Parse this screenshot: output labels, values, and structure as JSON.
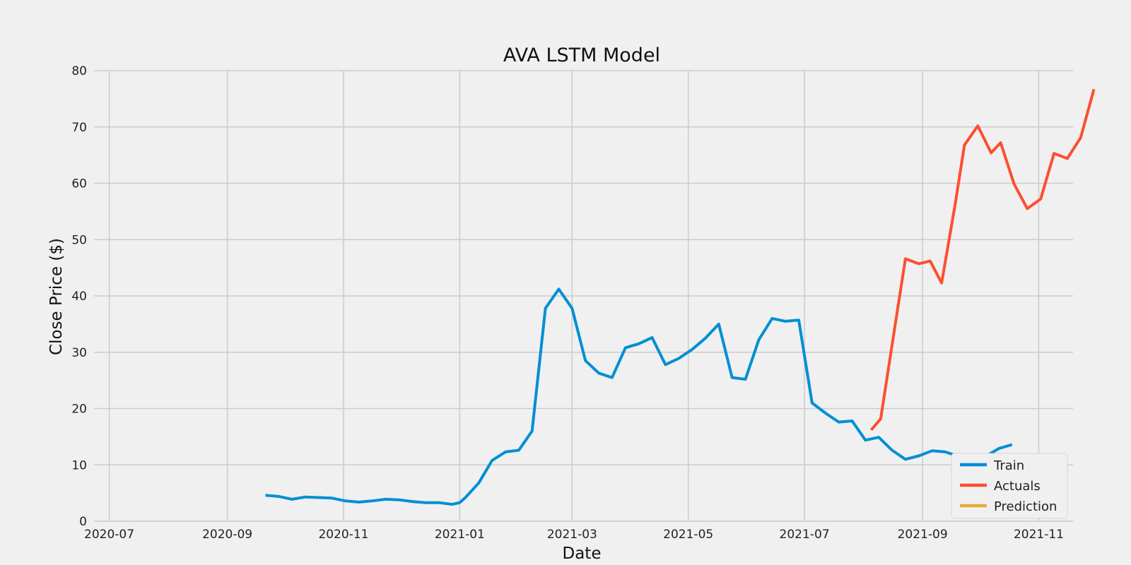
{
  "chart_data": {
    "type": "line",
    "title": "AVA LSTM Model",
    "xlabel": "Date",
    "ylabel": "Close Price ($)",
    "x_type": "date",
    "xlim": [
      "2020-06-23",
      "2021-11-19"
    ],
    "ylim": [
      0,
      80
    ],
    "x_ticks": [
      "2020-07-01",
      "2020-09-01",
      "2020-11-01",
      "2021-01-01",
      "2021-03-01",
      "2021-05-01",
      "2021-07-01",
      "2021-09-01",
      "2021-11-01"
    ],
    "x_tick_labels": [
      "2020-07",
      "2020-09",
      "2020-11",
      "2021-01",
      "2021-03",
      "2021-05",
      "2021-07",
      "2021-09",
      "2021-11"
    ],
    "y_ticks": [
      0,
      10,
      20,
      30,
      40,
      50,
      60,
      70,
      80
    ],
    "grid": true,
    "legend_position": "lower-right",
    "series": [
      {
        "name": "Train",
        "color": "#008fd5",
        "points": [
          [
            "2020-09-21",
            4.6
          ],
          [
            "2020-09-28",
            4.4
          ],
          [
            "2020-10-05",
            3.9
          ],
          [
            "2020-10-12",
            4.3
          ],
          [
            "2020-10-19",
            4.2
          ],
          [
            "2020-10-26",
            4.1
          ],
          [
            "2020-11-02",
            3.6
          ],
          [
            "2020-11-09",
            3.4
          ],
          [
            "2020-11-16",
            3.6
          ],
          [
            "2020-11-23",
            3.9
          ],
          [
            "2020-11-30",
            3.8
          ],
          [
            "2020-12-07",
            3.5
          ],
          [
            "2020-12-14",
            3.3
          ],
          [
            "2020-12-21",
            3.3
          ],
          [
            "2020-12-28",
            3.0
          ],
          [
            "2021-01-01",
            3.3
          ],
          [
            "2021-01-04",
            4.2
          ],
          [
            "2021-01-11",
            6.8
          ],
          [
            "2021-01-18",
            10.8
          ],
          [
            "2021-01-25",
            12.3
          ],
          [
            "2021-02-01",
            12.6
          ],
          [
            "2021-02-08",
            16.0
          ],
          [
            "2021-02-15",
            37.8
          ],
          [
            "2021-02-22",
            41.2
          ],
          [
            "2021-03-01",
            37.8
          ],
          [
            "2021-03-08",
            28.5
          ],
          [
            "2021-03-15",
            26.3
          ],
          [
            "2021-03-22",
            25.5
          ],
          [
            "2021-03-29",
            30.8
          ],
          [
            "2021-04-05",
            31.5
          ],
          [
            "2021-04-12",
            32.6
          ],
          [
            "2021-04-19",
            27.8
          ],
          [
            "2021-04-26",
            28.9
          ],
          [
            "2021-05-03",
            30.5
          ],
          [
            "2021-05-10",
            32.5
          ],
          [
            "2021-05-17",
            35.0
          ],
          [
            "2021-05-24",
            25.5
          ],
          [
            "2021-05-31",
            25.2
          ],
          [
            "2021-06-07",
            32.2
          ],
          [
            "2021-06-14",
            36.0
          ],
          [
            "2021-06-21",
            35.5
          ],
          [
            "2021-06-28",
            35.7
          ],
          [
            "2021-07-05",
            21.0
          ],
          [
            "2021-07-12",
            19.2
          ],
          [
            "2021-07-19",
            17.6
          ],
          [
            "2021-07-26",
            17.8
          ],
          [
            "2021-08-02",
            14.4
          ],
          [
            "2021-08-09",
            14.9
          ],
          [
            "2021-08-16",
            12.6
          ],
          [
            "2021-08-23",
            11.0
          ],
          [
            "2021-08-30",
            11.6
          ],
          [
            "2021-09-06",
            12.5
          ],
          [
            "2021-09-13",
            12.3
          ],
          [
            "2021-09-20",
            11.5
          ],
          [
            "2021-09-27",
            10.5
          ],
          [
            "2021-10-04",
            11.5
          ],
          [
            "2021-10-11",
            12.9
          ],
          [
            "2021-10-18",
            13.6
          ]
        ]
      },
      {
        "name": "Actuals",
        "color": "#fc4f30",
        "points": [
          [
            "2021-08-05",
            16.2
          ],
          [
            "2021-08-10",
            18.2
          ],
          [
            "2021-08-17",
            33.5
          ],
          [
            "2021-08-23",
            46.6
          ],
          [
            "2021-08-30",
            45.7
          ],
          [
            "2021-09-05",
            46.2
          ],
          [
            "2021-09-11",
            42.3
          ],
          [
            "2021-09-18",
            56.0
          ],
          [
            "2021-09-23",
            66.8
          ],
          [
            "2021-09-30",
            70.2
          ],
          [
            "2021-10-07",
            65.4
          ],
          [
            "2021-10-12",
            67.2
          ],
          [
            "2021-10-19",
            59.9
          ],
          [
            "2021-10-26",
            55.5
          ],
          [
            "2021-11-02",
            57.2
          ],
          [
            "2021-11-09",
            65.3
          ],
          [
            "2021-11-16",
            64.4
          ],
          [
            "2021-11-23",
            68.1
          ],
          [
            "2021-11-30",
            76.7
          ]
        ]
      },
      {
        "name": "Prediction",
        "color": "#e5ae38",
        "points": []
      }
    ]
  }
}
